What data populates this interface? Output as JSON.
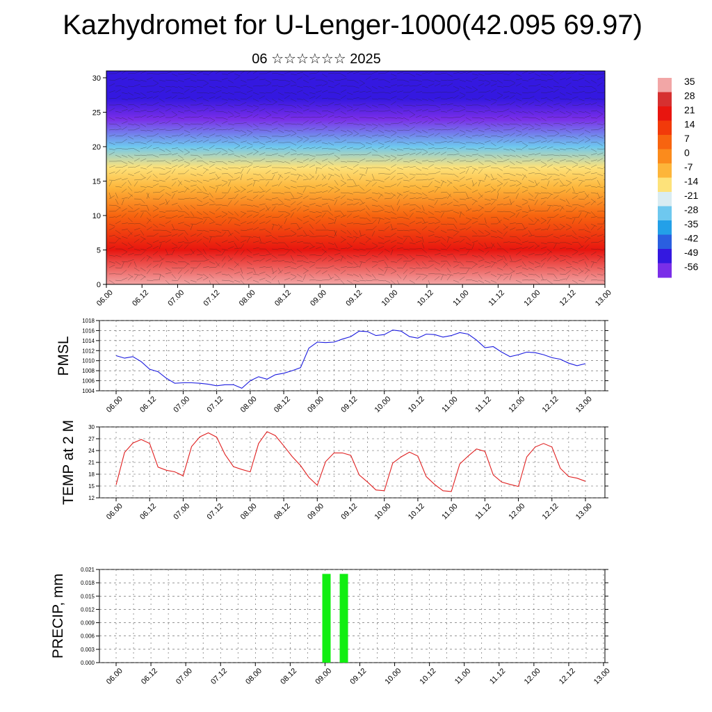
{
  "title": "Kazhydromet for U-Lenger-1000(42.095 69.97)",
  "subtitle": "06 ☆☆☆☆☆☆ 2025",
  "time_labels": [
    "06.00",
    "06.12",
    "07.00",
    "07.12",
    "08.00",
    "08.12",
    "09.00",
    "09.12",
    "10.00",
    "10.12",
    "11.00",
    "11.12",
    "12.00",
    "12.12",
    "13.00"
  ],
  "chart_data": [
    {
      "type": "heatmap",
      "name_ref": "upper-air cross section",
      "x": [
        "06.00",
        "06.12",
        "07.00",
        "07.12",
        "08.00",
        "08.12",
        "09.00",
        "09.12",
        "10.00",
        "10.12",
        "11.00",
        "11.12",
        "12.00",
        "12.12",
        "13.00"
      ],
      "yticks": [
        0,
        5,
        10,
        15,
        20,
        25,
        30
      ],
      "ylim": [
        0,
        31
      ],
      "colorbar_labels": [
        "35",
        "28",
        "21",
        "14",
        "7",
        "0",
        "-7",
        "-14",
        "-21",
        "-28",
        "-35",
        "-42",
        "-49",
        "-56"
      ],
      "colorbar_colors": [
        "#f2a6a6",
        "#d63030",
        "#e8150f",
        "#f23a0a",
        "#f7640f",
        "#fb8b1c",
        "#fdb53a",
        "#fde27a",
        "#d9ecf2",
        "#6ec8ef",
        "#23a0e8",
        "#2a5fe0",
        "#3418e0",
        "#7a2ee8"
      ],
      "profile": {
        "heights": [
          0,
          5,
          10,
          14,
          17,
          20,
          24,
          27,
          31
        ],
        "values": [
          35,
          21,
          7,
          -7,
          -14,
          -30,
          -56,
          -49,
          -49
        ]
      },
      "note_grid": false
    },
    {
      "type": "line",
      "ylabel": "PMSL",
      "ylim": [
        1004,
        1018
      ],
      "yticks": [
        1004,
        1006,
        1008,
        1010,
        1012,
        1014,
        1016,
        1018
      ],
      "color": "#1a1adf",
      "x_step_hours": 3,
      "values": [
        1011,
        1010.5,
        1010.8,
        1009.8,
        1008.3,
        1007.8,
        1006.5,
        1005.5,
        1005.6,
        1005.6,
        1005.5,
        1005.3,
        1005.0,
        1005.2,
        1005.2,
        1004.5,
        1006.0,
        1006.8,
        1006.3,
        1007.2,
        1007.5,
        1008.0,
        1008.6,
        1012.5,
        1013.7,
        1013.6,
        1013.7,
        1014.3,
        1014.8,
        1015.9,
        1015.8,
        1015.0,
        1015.2,
        1016.1,
        1015.9,
        1014.8,
        1014.5,
        1015.3,
        1015.2,
        1014.7,
        1015.0,
        1015.6,
        1015.3,
        1014.1,
        1012.6,
        1012.8,
        1011.7,
        1010.8,
        1011.2,
        1011.7,
        1011.6,
        1011.2,
        1010.6,
        1010.3,
        1009.5,
        1009.0,
        1009.4
      ]
    },
    {
      "type": "line",
      "ylabel": "TEMP at 2 M",
      "ylim": [
        12,
        30
      ],
      "yticks": [
        12,
        15,
        18,
        21,
        24,
        27,
        30
      ],
      "color": "#e02020",
      "x_step_hours": 3,
      "values": [
        15.3,
        23.5,
        25.9,
        26.8,
        25.8,
        19.8,
        19.0,
        18.6,
        17.6,
        25.0,
        27.5,
        28.5,
        27.4,
        23.0,
        19.9,
        19.2,
        18.6,
        25.8,
        28.8,
        27.8,
        25.2,
        22.5,
        20.2,
        17.2,
        15.2,
        21.2,
        23.4,
        23.4,
        22.8,
        17.8,
        16.0,
        14.0,
        13.8,
        20.8,
        22.4,
        23.6,
        22.6,
        17.4,
        15.4,
        13.8,
        13.6,
        20.6,
        22.6,
        24.4,
        23.8,
        17.8,
        16.0,
        15.4,
        14.9,
        22.4,
        24.9,
        25.8,
        24.9,
        19.5,
        17.4,
        17.0,
        16.2
      ]
    },
    {
      "type": "bar",
      "ylabel": "PRECIP, mm",
      "ylim": [
        0,
        0.021
      ],
      "yticks": [
        "0.000",
        "0.003",
        "0.006",
        "0.009",
        "0.012",
        "0.015",
        "0.018",
        "0.021"
      ],
      "color": "#11ee11",
      "bars": [
        {
          "x_hours": 72.5,
          "value": 0.02
        },
        {
          "x_hours": 78.5,
          "value": 0.02
        }
      ]
    }
  ]
}
